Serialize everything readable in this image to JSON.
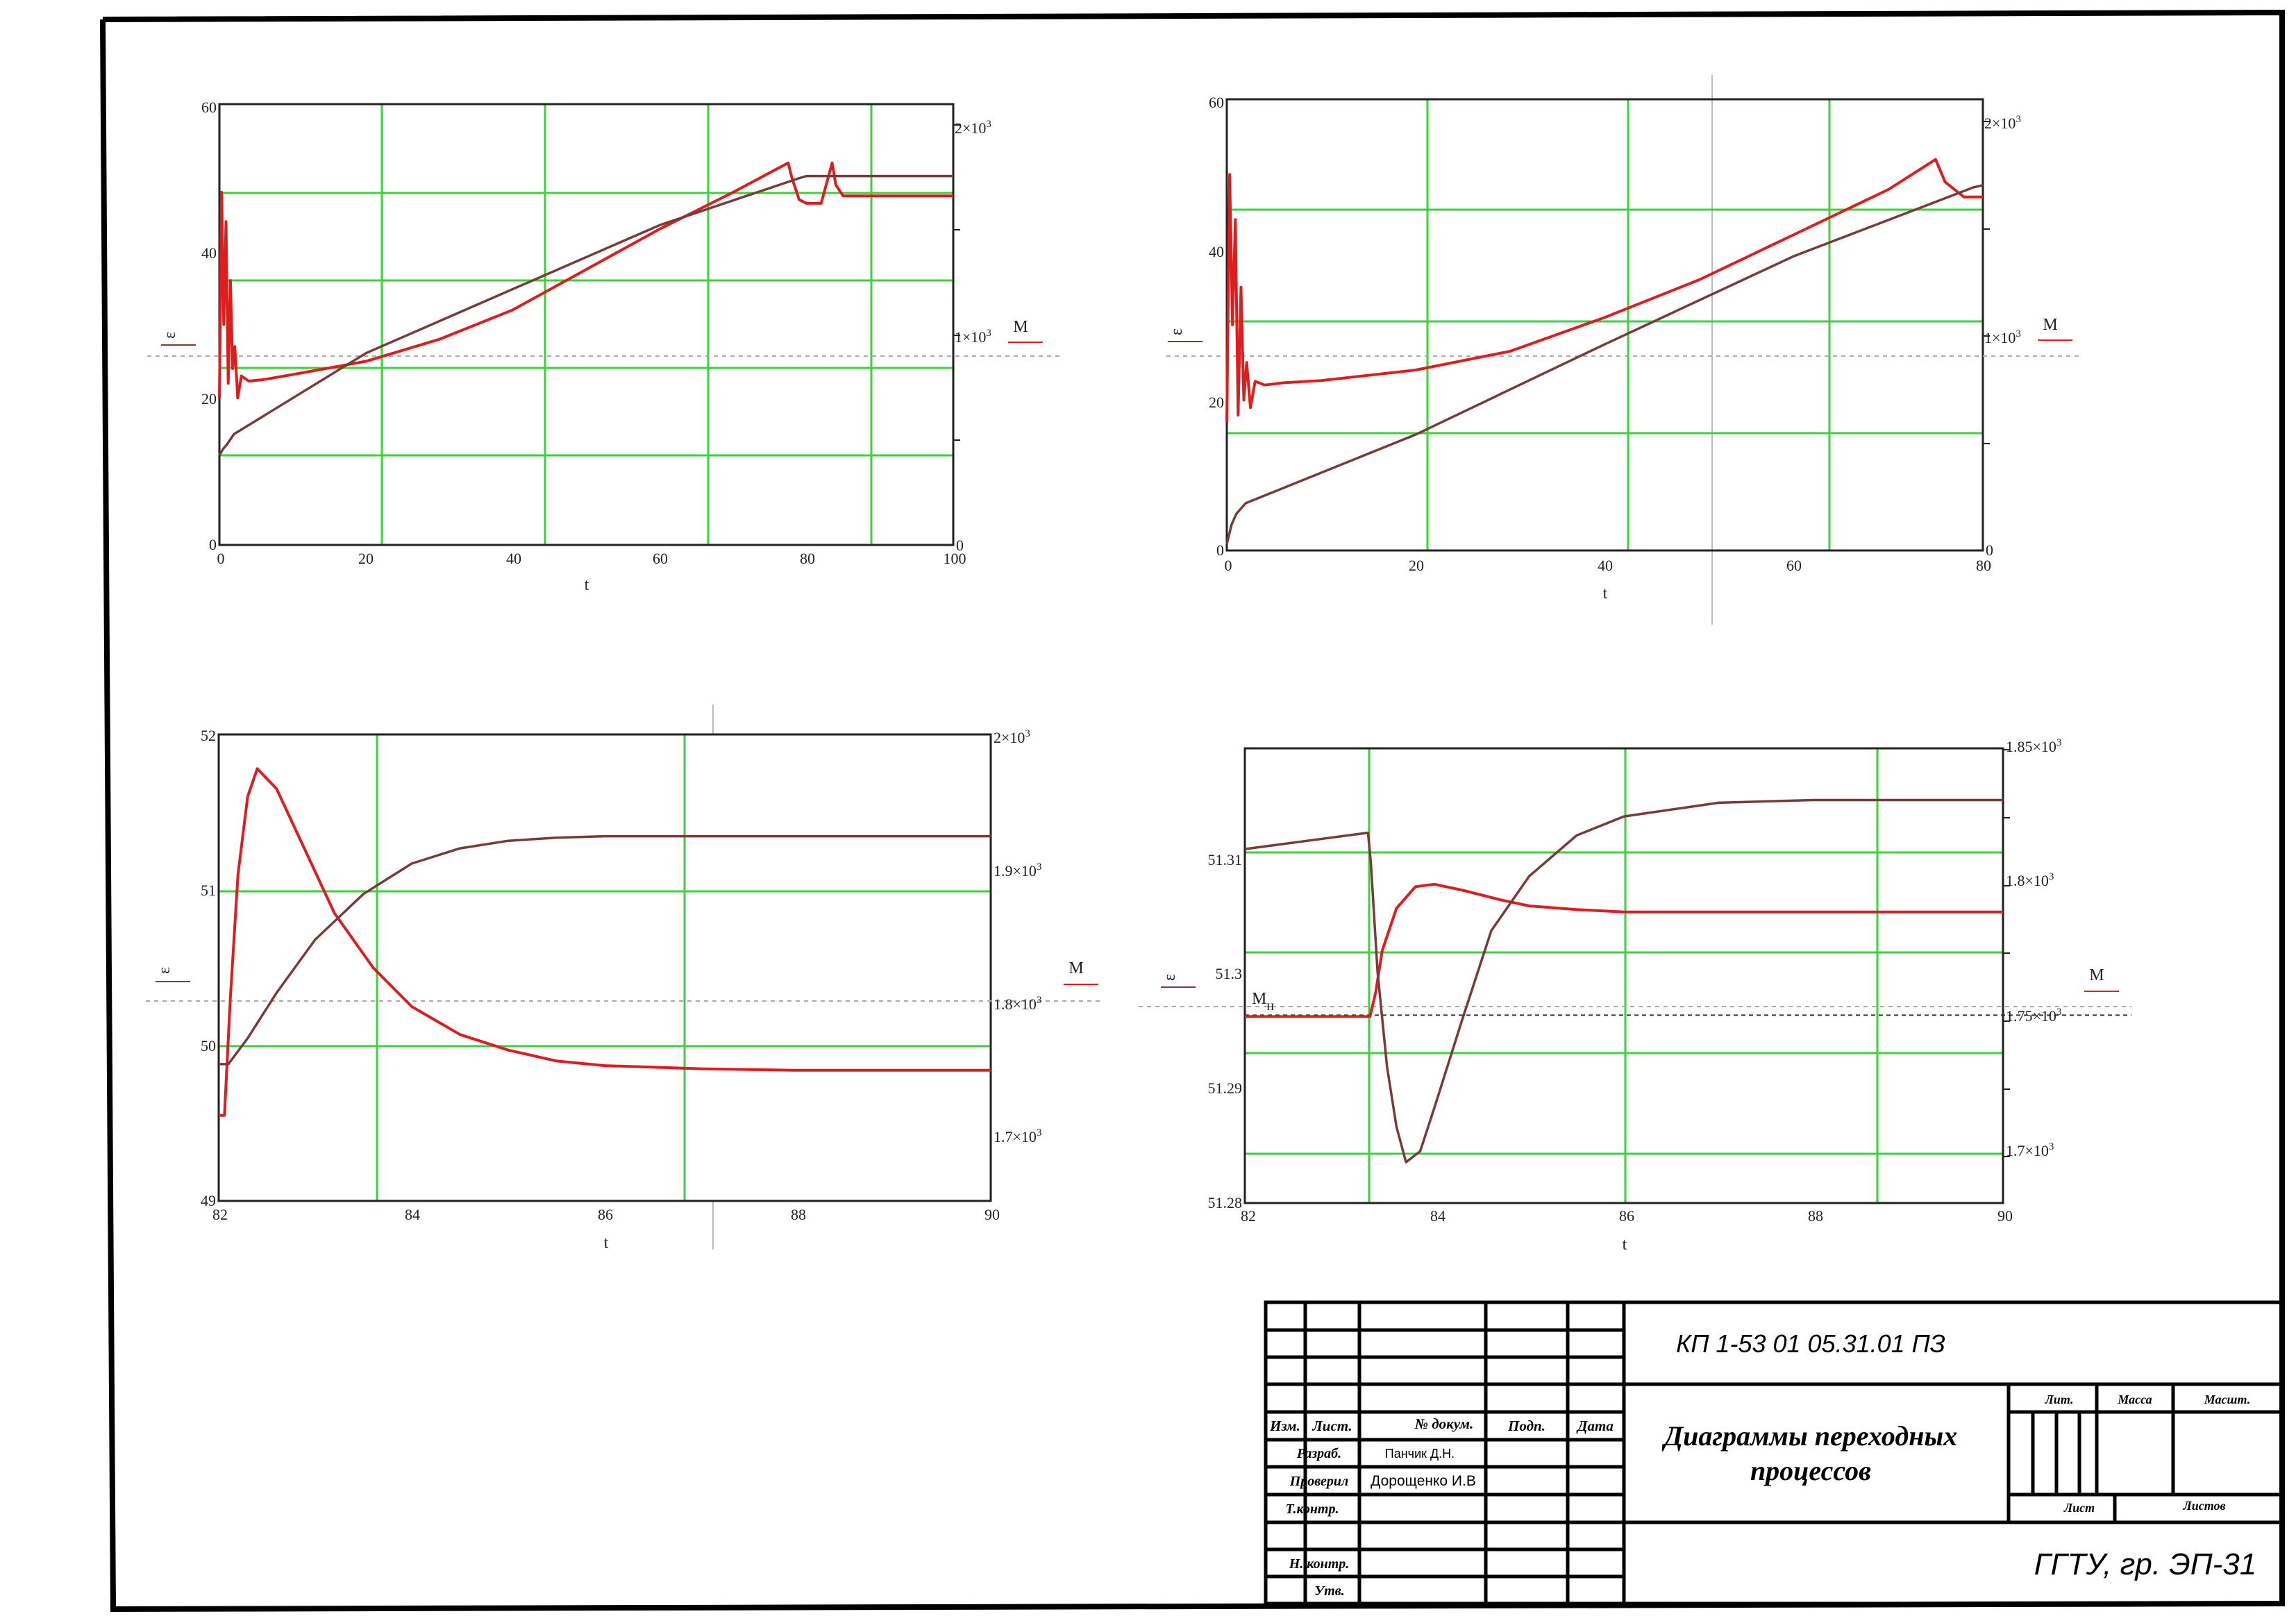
{
  "colors": {
    "grid": "#3cd23c",
    "red": "#dc1e1e",
    "brown": "#7a3a3a",
    "frame": "#000000"
  },
  "charts": [
    {
      "xlabel": "t",
      "ylabel_left": "ε",
      "ylabel_right": "M",
      "xticks": [
        "0",
        "20",
        "40",
        "60",
        "80",
        "100"
      ],
      "yticks_left": [
        "0",
        "20",
        "40",
        "60"
      ],
      "yticks_right": [
        {
          "b": "1×10",
          "e": "3"
        },
        {
          "b": "2×10",
          "e": "3"
        }
      ]
    },
    {
      "xlabel": "t",
      "ylabel_left": "ε",
      "ylabel_right": "M",
      "xticks": [
        "0",
        "20",
        "40",
        "60",
        "80"
      ],
      "yticks_left": [
        "0",
        "20",
        "40",
        "60"
      ],
      "yticks_right": [
        {
          "b": "1×10",
          "e": "3"
        },
        {
          "b": "2×10",
          "e": "3"
        }
      ]
    },
    {
      "xlabel": "t",
      "ylabel_left": "ε",
      "ylabel_right": "M",
      "xticks": [
        "82",
        "84",
        "86",
        "88",
        "90"
      ],
      "yticks_left": [
        "49",
        "50",
        "51",
        "52"
      ],
      "yticks_right": [
        {
          "b": "1.7×10",
          "e": "3"
        },
        {
          "b": "1.8×10",
          "e": "3"
        },
        {
          "b": "1.9×10",
          "e": "3"
        },
        {
          "b": "2×10",
          "e": "3"
        }
      ]
    },
    {
      "xlabel": "t",
      "ylabel_left": "ε",
      "ylabel_right": "M",
      "xticks": [
        "82",
        "84",
        "86",
        "88",
        "90"
      ],
      "yticks_left": [
        "51.28",
        "51.29",
        "51.3",
        "51.31"
      ],
      "yticks_right": [
        {
          "b": "1.7×10",
          "e": "3"
        },
        {
          "b": "1.75×10",
          "e": "3"
        },
        {
          "b": "1.8×10",
          "e": "3"
        },
        {
          "b": "1.85×10",
          "e": "3"
        }
      ],
      "ref_label": {
        "b": "M",
        "s": "н"
      }
    }
  ],
  "chart_data": [
    {
      "type": "line",
      "x_range": [
        0,
        100
      ],
      "y_left_range": [
        0,
        60
      ],
      "y_right_range": [
        0,
        2100
      ],
      "series": [
        {
          "axis": "left",
          "color": "red",
          "x": [
            0,
            0.3,
            0.6,
            0.9,
            1.2,
            1.5,
            1.8,
            2.1,
            2.5,
            3,
            4,
            6,
            10,
            20,
            30,
            40,
            50,
            60,
            70,
            77.5,
            78,
            79,
            80,
            82,
            83.5,
            84,
            85,
            87,
            90,
            100
          ],
          "y": [
            20,
            48,
            30,
            44,
            22,
            36,
            24,
            27,
            20,
            23,
            22.3,
            22.5,
            23.2,
            25,
            28,
            32,
            37.5,
            43,
            48,
            52,
            50,
            47,
            46.5,
            46.5,
            52,
            49,
            47.5,
            47.5,
            47.5,
            47.5
          ]
        },
        {
          "axis": "right",
          "color": "brown",
          "x": [
            0,
            0.5,
            1,
            2,
            20,
            40,
            60,
            79,
            80,
            100
          ],
          "y": [
            420,
            450,
            470,
            520,
            900,
            1200,
            1500,
            1720,
            1730,
            1730
          ]
        }
      ]
    },
    {
      "type": "line",
      "x_range": [
        0,
        80
      ],
      "y_left_range": [
        0,
        60
      ],
      "y_right_range": [
        0,
        2100
      ],
      "series": [
        {
          "axis": "left",
          "color": "red",
          "x": [
            0,
            0.3,
            0.6,
            0.9,
            1.2,
            1.5,
            1.8,
            2.1,
            2.5,
            3,
            4,
            6,
            10,
            20,
            30,
            40,
            50,
            60,
            70,
            75,
            76,
            78,
            80
          ],
          "y": [
            17,
            50,
            30,
            44,
            18,
            35,
            20,
            25,
            19,
            22.5,
            22,
            22.3,
            22.6,
            24,
            26.5,
            31,
            36,
            42,
            48,
            52,
            49,
            47,
            47
          ]
        },
        {
          "axis": "right",
          "color": "brown",
          "x": [
            0,
            0.5,
            1,
            2,
            20,
            40,
            60,
            79,
            80
          ],
          "y": [
            30,
            120,
            170,
            220,
            540,
            960,
            1370,
            1690,
            1700
          ]
        }
      ]
    },
    {
      "type": "line",
      "x_range": [
        82,
        90
      ],
      "y_left_range": [
        49,
        52
      ],
      "y_right_range": [
        1650,
        2000
      ],
      "series": [
        {
          "axis": "left",
          "color": "red",
          "x": [
            82,
            82.06,
            82.12,
            82.2,
            82.3,
            82.4,
            82.6,
            82.9,
            83.2,
            83.6,
            84,
            84.5,
            85,
            85.5,
            86,
            87,
            88,
            90
          ],
          "y": [
            49.55,
            49.55,
            50.3,
            51.1,
            51.6,
            51.78,
            51.65,
            51.25,
            50.85,
            50.5,
            50.25,
            50.07,
            49.97,
            49.9,
            49.87,
            49.85,
            49.84,
            49.84
          ]
        },
        {
          "axis": "right",
          "color": "brown",
          "x": [
            82,
            82.1,
            82.3,
            82.6,
            83,
            83.5,
            84,
            84.5,
            85,
            85.5,
            86,
            87,
            88,
            90
          ],
          "y": [
            1783,
            1783,
            1800,
            1830,
            1865,
            1895,
            1915,
            1925,
            1930,
            1932,
            1933,
            1933,
            1933,
            1933
          ]
        }
      ]
    },
    {
      "type": "line",
      "x_range": [
        82,
        90
      ],
      "y_left_range": [
        51.28,
        51.3178
      ],
      "y_right_range": [
        1685,
        1852
      ],
      "reference_line": {
        "axis": "right",
        "value": 1754
      },
      "series": [
        {
          "axis": "left",
          "color": "red",
          "x": [
            82,
            83.32,
            83.38,
            83.45,
            83.6,
            83.8,
            84,
            84.3,
            84.7,
            85,
            85.5,
            86,
            87,
            88,
            90
          ],
          "y": [
            51.2955,
            51.2955,
            51.2975,
            51.301,
            51.3045,
            51.3063,
            51.3065,
            51.306,
            51.3052,
            51.3047,
            51.3044,
            51.3042,
            51.3042,
            51.3042,
            51.3042
          ]
        },
        {
          "axis": "right",
          "color": "brown",
          "x": [
            82,
            83.3,
            83.33,
            83.4,
            83.5,
            83.6,
            83.7,
            83.85,
            84,
            84.3,
            84.6,
            85,
            85.5,
            86,
            87,
            88,
            90
          ],
          "y": [
            1815,
            1821,
            1810,
            1770,
            1735,
            1713,
            1700,
            1704,
            1720,
            1753,
            1785,
            1805,
            1820,
            1827,
            1832,
            1833,
            1833
          ]
        }
      ]
    }
  ],
  "titleblock": {
    "code": "КП 1-53 01 05.31.01 ПЗ",
    "title_line1": "Диаграммы переходных",
    "title_line2": "процессов",
    "org": "ГГТУ, гр. ЭП-31",
    "header": {
      "izm": "Изм.",
      "list": "Лист.",
      "doc": "№ докум.",
      "podp": "Подп.",
      "data": "Дата"
    },
    "rows": {
      "razrab": "Разраб.",
      "proveril": "Проверил",
      "tkontr": "Т.контр.",
      "nkontr": "Н. контр.",
      "utv": "Утв."
    },
    "names": {
      "razrab": "Панчик Д.Н.",
      "proveril": "Дорощенко И.В"
    },
    "lit": "Лит.",
    "massa": "Масса",
    "masht": "Масшт.",
    "sheet": "Лист",
    "sheets": "Листов"
  }
}
